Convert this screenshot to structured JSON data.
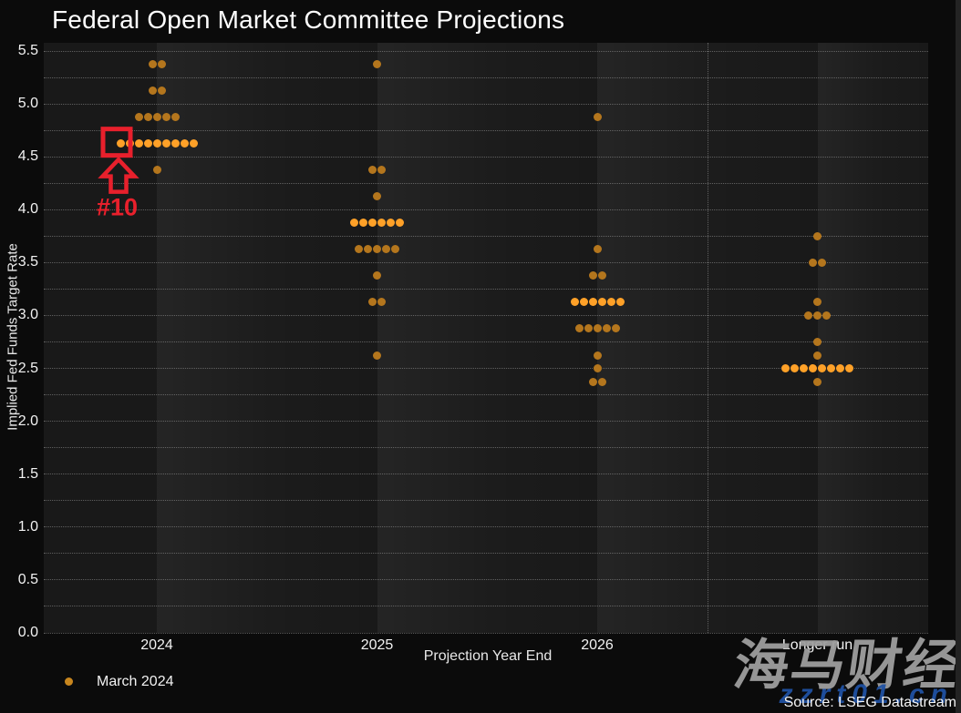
{
  "title": "Federal Open Market Committee Projections",
  "legend": {
    "label": "March 2024"
  },
  "source": {
    "text": "Source: LSEG Datastream"
  },
  "watermark": {
    "brand": "海马财经",
    "site": "zzrt01.cn"
  },
  "annotation": {
    "label": "#10",
    "target_category": "2024",
    "target_rate": 4.625,
    "target_dot_index": 0,
    "color": "#e8202c"
  },
  "axes": {
    "y_tick_labels": [
      "5.5",
      "5.0",
      "4.5",
      "4.0",
      "3.5",
      "3.0",
      "2.5",
      "2.0",
      "1.5",
      "1.0",
      "0.5",
      "0.0"
    ]
  },
  "colors": {
    "dot": "#b4761d",
    "dot_highlight": "#ffa128",
    "legend_dot": "#c8861e",
    "grid_dot": "#a5a5a5",
    "annotation_red": "#e8202c",
    "watermark_gray": "#9e9e9e",
    "watermark_blue": "#2051a2",
    "plot_bg": "#191919",
    "page_bg": "#0b0b0b"
  },
  "chart_data": {
    "type": "scatter",
    "subtype": "fomc-dot-plot",
    "title": "Federal Open Market Committee Projections",
    "xlabel": "Projection Year End",
    "ylabel": "Implied Fed Funds Target Rate",
    "ylim": [
      0.0,
      5.5
    ],
    "y_label_step": 0.5,
    "y_grid_step": 0.25,
    "grid": true,
    "legend_position": "bottom-left",
    "categories": [
      "2024",
      "2025",
      "2026",
      "Longer run"
    ],
    "series": [
      {
        "name": "March 2024",
        "columns": [
          {
            "category": "2024",
            "rows": [
              {
                "rate": 5.375,
                "count": 2
              },
              {
                "rate": 5.125,
                "count": 2
              },
              {
                "rate": 4.875,
                "count": 5
              },
              {
                "rate": 4.625,
                "count": 9,
                "highlight": true
              },
              {
                "rate": 4.375,
                "count": 1
              }
            ]
          },
          {
            "category": "2025",
            "rows": [
              {
                "rate": 5.375,
                "count": 1
              },
              {
                "rate": 4.375,
                "count": 2
              },
              {
                "rate": 4.125,
                "count": 1
              },
              {
                "rate": 3.875,
                "count": 6,
                "highlight": true
              },
              {
                "rate": 3.625,
                "count": 5
              },
              {
                "rate": 3.375,
                "count": 1
              },
              {
                "rate": 3.125,
                "count": 2
              },
              {
                "rate": 2.625,
                "count": 1
              }
            ]
          },
          {
            "category": "2026",
            "rows": [
              {
                "rate": 4.875,
                "count": 1
              },
              {
                "rate": 3.625,
                "count": 1
              },
              {
                "rate": 3.375,
                "count": 2
              },
              {
                "rate": 3.125,
                "count": 6,
                "highlight": true
              },
              {
                "rate": 2.875,
                "count": 5
              },
              {
                "rate": 2.625,
                "count": 1
              },
              {
                "rate": 2.5,
                "count": 1
              },
              {
                "rate": 2.375,
                "count": 2
              }
            ]
          },
          {
            "category": "Longer run",
            "rows": [
              {
                "rate": 3.75,
                "count": 1
              },
              {
                "rate": 3.5,
                "count": 2
              },
              {
                "rate": 3.125,
                "count": 1
              },
              {
                "rate": 3.0,
                "count": 3
              },
              {
                "rate": 2.75,
                "count": 1
              },
              {
                "rate": 2.625,
                "count": 1
              },
              {
                "rate": 2.5,
                "count": 8,
                "highlight": true
              },
              {
                "rate": 2.375,
                "count": 1
              }
            ]
          }
        ]
      }
    ]
  }
}
